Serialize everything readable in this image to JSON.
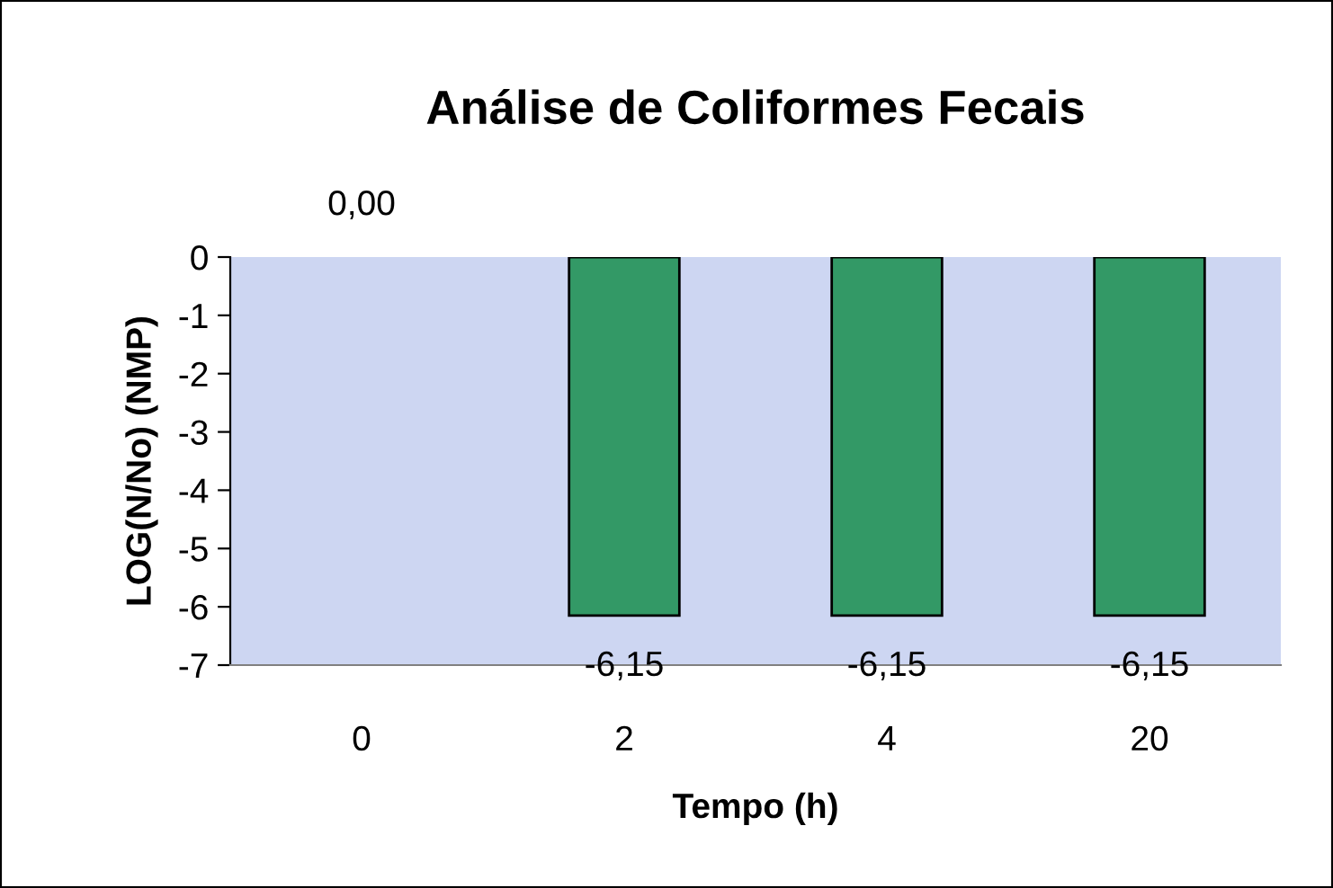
{
  "chart_data": {
    "type": "bar",
    "title": "Análise de Coliformes Fecais",
    "xlabel": "Tempo (h)",
    "ylabel": "LOG(N/No) (NMP)",
    "categories": [
      "0",
      "2",
      "4",
      "20"
    ],
    "values": [
      0,
      -6.15,
      -6.15,
      -6.15
    ],
    "value_labels": [
      "0,00",
      "-6,15",
      "-6,15",
      "-6,15"
    ],
    "color": "#339966",
    "ylim": [
      -7,
      0
    ],
    "yticks": [
      0,
      -1,
      -2,
      -3,
      -4,
      -5,
      -6,
      -7
    ],
    "grid": false,
    "legend": false
  }
}
